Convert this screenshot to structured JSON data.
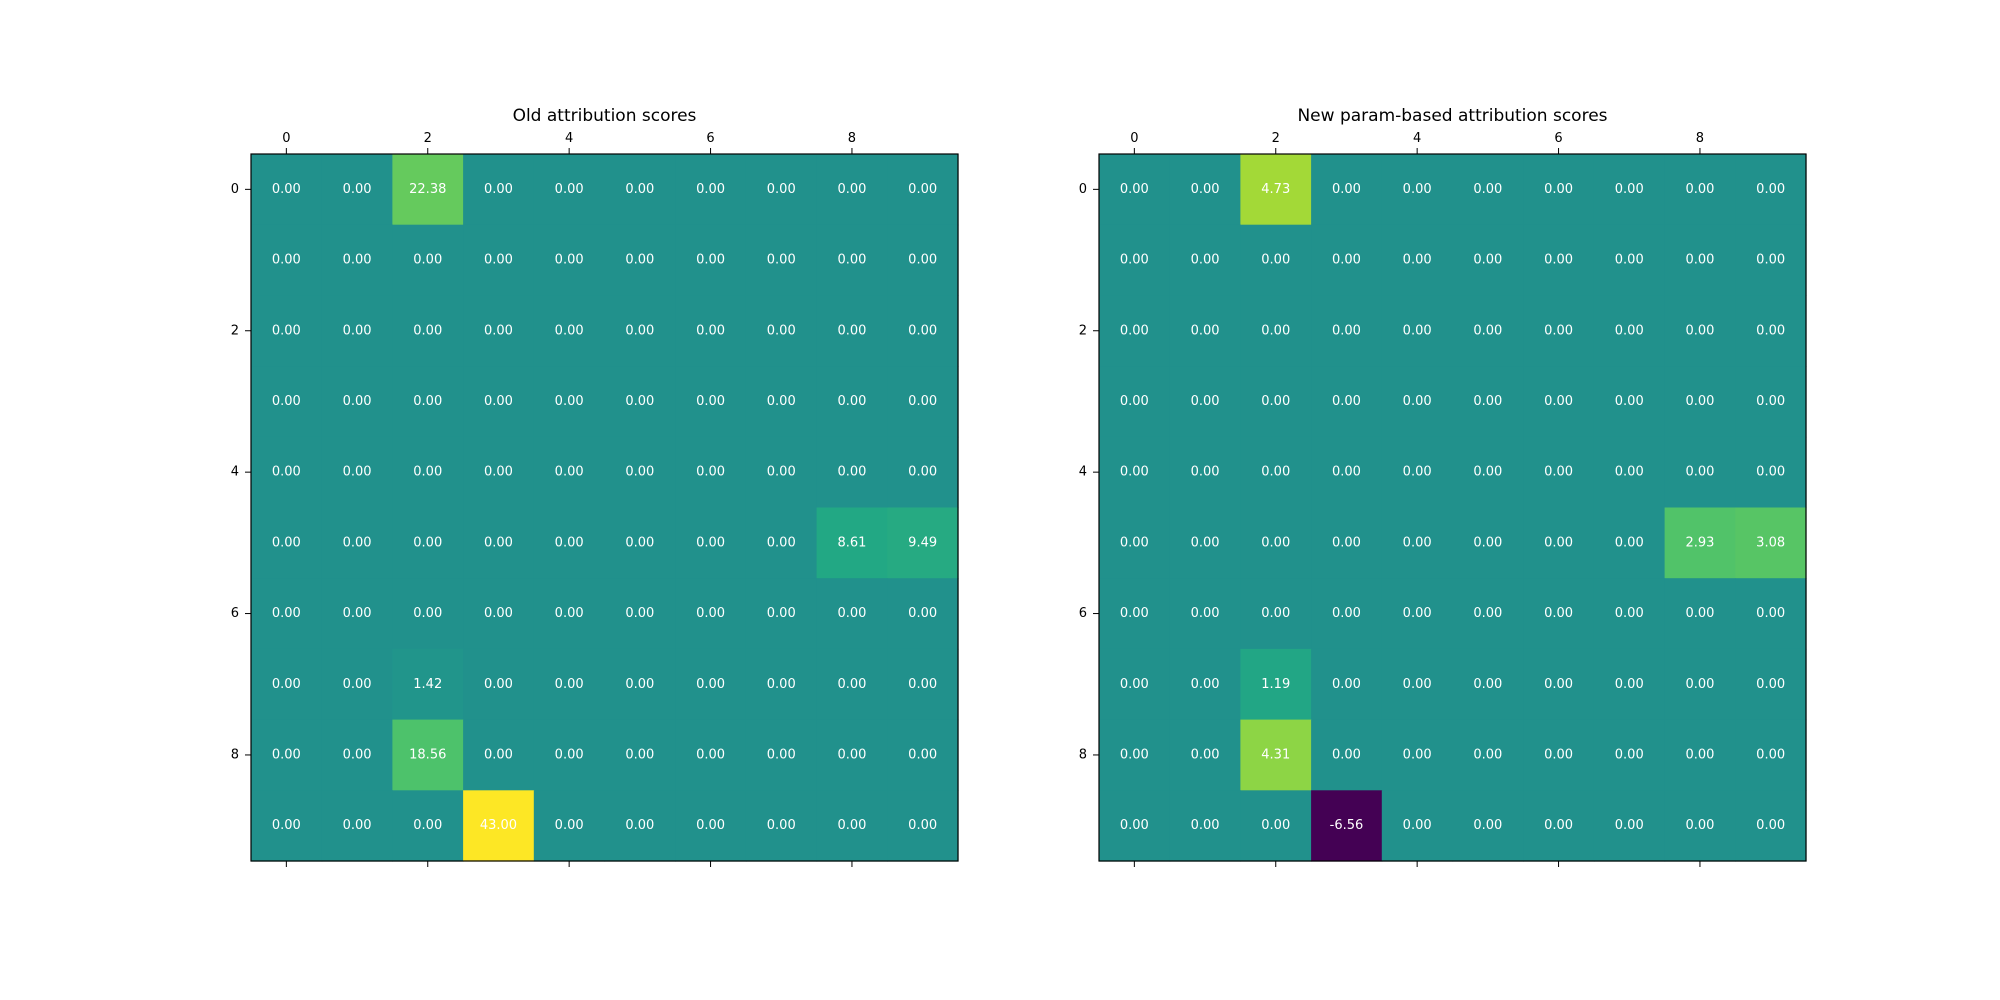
{
  "chart_data": [
    {
      "type": "heatmap",
      "title": "Old attribution scores",
      "xticks": [
        0,
        2,
        4,
        6,
        8
      ],
      "yticks": [
        0,
        2,
        4,
        6,
        8
      ],
      "cell_format": "fixed-2",
      "colormap": "viridis",
      "vmin": -43.0,
      "vmax": 43.0,
      "values": [
        [
          0.0,
          0.0,
          22.38,
          0.0,
          0.0,
          0.0,
          0.0,
          0.0,
          0.0,
          0.0
        ],
        [
          0.0,
          0.0,
          0.0,
          0.0,
          0.0,
          0.0,
          0.0,
          0.0,
          0.0,
          0.0
        ],
        [
          0.0,
          0.0,
          0.0,
          0.0,
          0.0,
          0.0,
          0.0,
          0.0,
          0.0,
          0.0
        ],
        [
          0.0,
          0.0,
          0.0,
          0.0,
          0.0,
          0.0,
          0.0,
          0.0,
          0.0,
          0.0
        ],
        [
          0.0,
          0.0,
          0.0,
          0.0,
          0.0,
          0.0,
          0.0,
          0.0,
          0.0,
          0.0
        ],
        [
          0.0,
          0.0,
          0.0,
          0.0,
          0.0,
          0.0,
          0.0,
          0.0,
          8.61,
          9.49
        ],
        [
          0.0,
          0.0,
          0.0,
          0.0,
          0.0,
          0.0,
          0.0,
          0.0,
          0.0,
          0.0
        ],
        [
          0.0,
          0.0,
          1.42,
          0.0,
          0.0,
          0.0,
          0.0,
          0.0,
          0.0,
          0.0
        ],
        [
          0.0,
          0.0,
          18.56,
          0.0,
          0.0,
          0.0,
          0.0,
          0.0,
          0.0,
          0.0
        ],
        [
          0.0,
          0.0,
          0.0,
          43.0,
          0.0,
          0.0,
          0.0,
          0.0,
          0.0,
          0.0
        ]
      ]
    },
    {
      "type": "heatmap",
      "title": "New param-based attribution scores",
      "xticks": [
        0,
        2,
        4,
        6,
        8
      ],
      "yticks": [
        0,
        2,
        4,
        6,
        8
      ],
      "cell_format": "fixed-2",
      "colormap": "viridis",
      "vmin": -6.56,
      "vmax": 6.56,
      "values": [
        [
          0.0,
          0.0,
          4.73,
          0.0,
          0.0,
          0.0,
          0.0,
          0.0,
          0.0,
          0.0
        ],
        [
          0.0,
          0.0,
          0.0,
          0.0,
          0.0,
          0.0,
          0.0,
          0.0,
          0.0,
          0.0
        ],
        [
          0.0,
          0.0,
          0.0,
          0.0,
          0.0,
          0.0,
          0.0,
          0.0,
          0.0,
          0.0
        ],
        [
          0.0,
          0.0,
          0.0,
          0.0,
          0.0,
          0.0,
          0.0,
          0.0,
          0.0,
          0.0
        ],
        [
          0.0,
          0.0,
          0.0,
          0.0,
          0.0,
          0.0,
          0.0,
          0.0,
          0.0,
          0.0
        ],
        [
          0.0,
          0.0,
          0.0,
          0.0,
          0.0,
          0.0,
          0.0,
          0.0,
          2.93,
          3.08
        ],
        [
          0.0,
          0.0,
          0.0,
          0.0,
          0.0,
          0.0,
          0.0,
          0.0,
          0.0,
          0.0
        ],
        [
          0.0,
          0.0,
          1.19,
          0.0,
          0.0,
          0.0,
          0.0,
          0.0,
          0.0,
          0.0
        ],
        [
          0.0,
          0.0,
          4.31,
          0.0,
          0.0,
          0.0,
          0.0,
          0.0,
          0.0,
          0.0
        ],
        [
          0.0,
          0.0,
          0.0,
          -6.56,
          0.0,
          0.0,
          0.0,
          0.0,
          0.0,
          0.0
        ]
      ]
    }
  ]
}
